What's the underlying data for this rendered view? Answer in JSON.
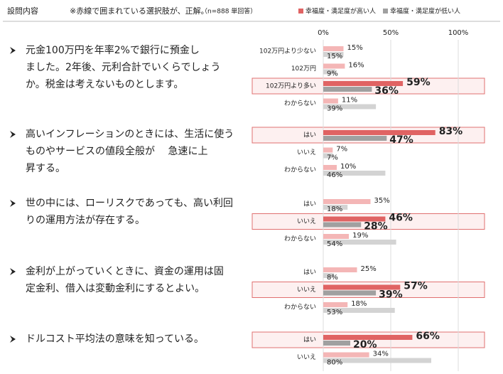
{
  "chart_data": {
    "type": "bar",
    "orientation": "horizontal",
    "header": "設問内容",
    "note": "※赤線で囲まれている選択肢が、正解。",
    "sample": "（n=888 単回答）",
    "series": [
      {
        "name": "幸福度・満足度が高い人",
        "color": "#f4b6b6",
        "correct_color": "#e06363"
      },
      {
        "name": "幸福度・満足度が低い人",
        "color": "#d3d3d3",
        "correct_color": "#a0a0a0"
      }
    ],
    "xlim": [
      0,
      100
    ],
    "xticks": [
      {
        "value": 0,
        "label": "0%"
      },
      {
        "value": 50,
        "label": "50%"
      },
      {
        "value": 100,
        "label": "100%"
      }
    ],
    "grid": true,
    "questions": [
      {
        "lines": [
          "元金100万円を年率2%で銀行に預金し",
          "ました。2年後、元利合計でいくらでしょう",
          "か。税金は考えないものとします。"
        ],
        "categories": [
          "102万円より少ない",
          "102万円",
          "102万円より多い",
          "わからない"
        ],
        "correct": 2,
        "series": [
          {
            "values": [
              15,
              16,
              59,
              11
            ],
            "value_labels": [
              "15%",
              "16%",
              "59%",
              "11%"
            ]
          },
          {
            "values": [
              15,
              9,
              36,
              39
            ],
            "value_labels": [
              "15%",
              "9%",
              "36%",
              "39%"
            ]
          }
        ]
      },
      {
        "lines": [
          "高いインフレーションのときには、生活に使う",
          "ものやサービスの値段全般が　 急速に上",
          "昇する。"
        ],
        "categories": [
          "はい",
          "いいえ",
          "わからない"
        ],
        "correct": 0,
        "series": [
          {
            "values": [
              83,
              7,
              10
            ],
            "value_labels": [
              "83%",
              "7%",
              "10%"
            ]
          },
          {
            "values": [
              47,
              7,
              46
            ],
            "value_labels": [
              "47%",
              "7%",
              "46%"
            ]
          }
        ]
      },
      {
        "lines": [
          "世の中には、ローリスクであっても、高い利回",
          "りの運用方法が存在する。"
        ],
        "categories": [
          "はい",
          "いいえ",
          "わからない"
        ],
        "correct": 1,
        "series": [
          {
            "values": [
              35,
              46,
              19
            ],
            "value_labels": [
              "35%",
              "46%",
              "19%"
            ]
          },
          {
            "values": [
              18,
              28,
              54
            ],
            "value_labels": [
              "18%",
              "28%",
              "54%"
            ]
          }
        ]
      },
      {
        "lines": [
          "金利が上がっていくときに、資金の運用は固",
          "定金利、借入は変動金利にするとよい。"
        ],
        "categories": [
          "はい",
          "いいえ",
          "わからない"
        ],
        "correct": 1,
        "series": [
          {
            "values": [
              25,
              57,
              18
            ],
            "value_labels": [
              "25%",
              "57%",
              "18%"
            ]
          },
          {
            "values": [
              8,
              39,
              53
            ],
            "value_labels": [
              "8%",
              "39%",
              "53%"
            ]
          }
        ]
      },
      {
        "lines": [
          "ドルコスト平均法の意味を知っている。"
        ],
        "categories": [
          "はい",
          "いいえ"
        ],
        "correct": 0,
        "series": [
          {
            "values": [
              66,
              34
            ],
            "value_labels": [
              "66%",
              "34%"
            ]
          },
          {
            "values": [
              20,
              80
            ],
            "value_labels": [
              "20%",
              "80%"
            ]
          }
        ]
      }
    ]
  }
}
